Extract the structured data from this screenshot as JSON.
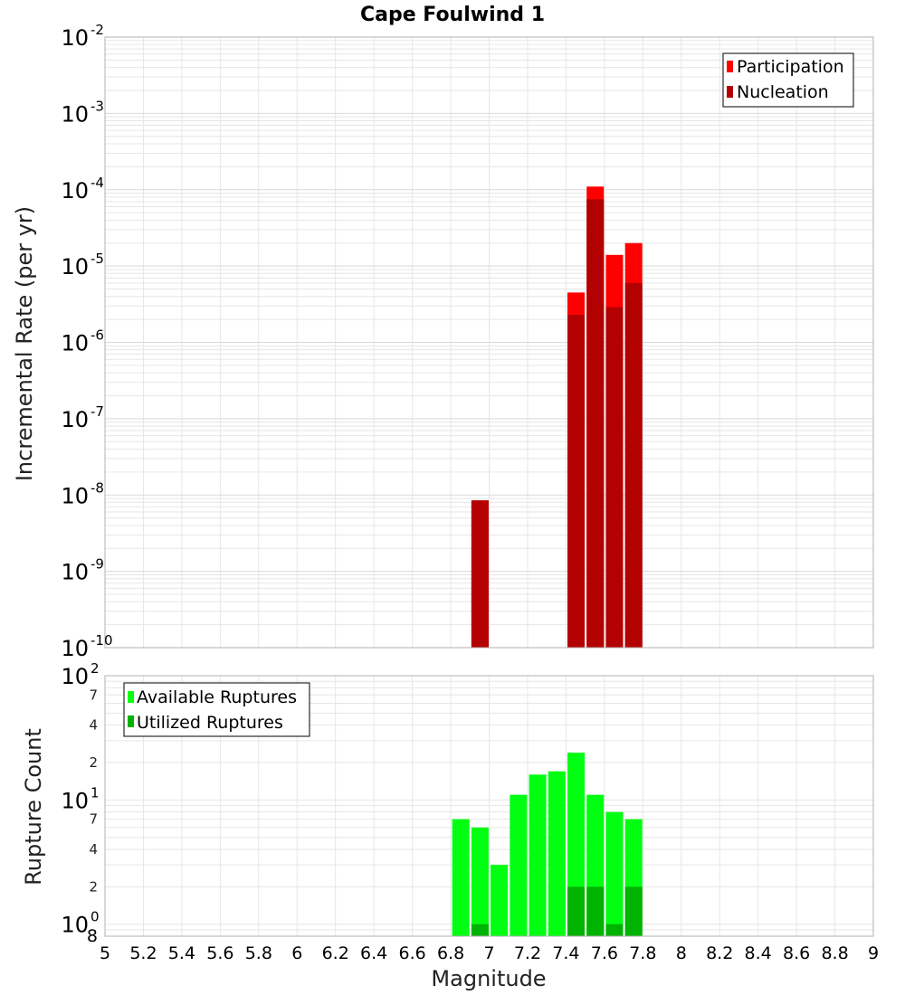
{
  "title": "Cape Foulwind 1",
  "colors": {
    "participation": "#ff0000",
    "nucleation": "#b30000",
    "available": "#00ff10",
    "utilized": "#00b300",
    "grid": "#e6e6e6",
    "frame": "#b0b0b0"
  },
  "chart_data": [
    {
      "type": "bar",
      "ylabel": "Incremental Rate (per yr)",
      "yscale": "log",
      "ylim": [
        1e-10,
        0.01
      ],
      "xlim": [
        5,
        9
      ],
      "grid": true,
      "legend_position": "top-right",
      "y_tick_labels": [
        {
          "base": "10",
          "exp": "-10",
          "value": 1e-10
        },
        {
          "base": "10",
          "exp": "-9",
          "value": 1e-09
        },
        {
          "base": "10",
          "exp": "-8",
          "value": 1e-08
        },
        {
          "base": "10",
          "exp": "-7",
          "value": 1e-07
        },
        {
          "base": "10",
          "exp": "-6",
          "value": 1e-06
        },
        {
          "base": "10",
          "exp": "-5",
          "value": 1e-05
        },
        {
          "base": "10",
          "exp": "-4",
          "value": 0.0001
        },
        {
          "base": "10",
          "exp": "-3",
          "value": 0.001
        },
        {
          "base": "10",
          "exp": "-2",
          "value": 0.01
        }
      ],
      "series": [
        {
          "name": "Participation",
          "x": [
            6.95,
            7.45,
            7.55,
            7.65,
            7.75
          ],
          "values": [
            8.5e-09,
            4.5e-06,
            0.00011,
            1.4e-05,
            2e-05
          ]
        },
        {
          "name": "Nucleation",
          "x": [
            6.95,
            7.45,
            7.55,
            7.65,
            7.75
          ],
          "values": [
            8.5e-09,
            2.3e-06,
            7.5e-05,
            2.9e-06,
            6e-06
          ]
        }
      ]
    },
    {
      "type": "bar",
      "xlabel": "Magnitude",
      "ylabel": "Rupture Count",
      "yscale": "log",
      "ylim": [
        0.8,
        100
      ],
      "xlim": [
        5,
        9
      ],
      "grid": true,
      "legend_position": "top-left",
      "x_tick_labels": [
        "5",
        "5.2",
        "5.4",
        "5.6",
        "5.8",
        "6",
        "6.2",
        "6.4",
        "6.6",
        "6.8",
        "7",
        "7.2",
        "7.4",
        "7.6",
        "7.8",
        "8",
        "8.2",
        "8.4",
        "8.6",
        "8.8",
        "9"
      ],
      "y_tick_labels": [
        {
          "base": "10",
          "exp": "0",
          "value": 1
        },
        {
          "base": "10",
          "exp": "1",
          "value": 10
        },
        {
          "base": "10",
          "exp": "2",
          "value": 100
        }
      ],
      "y_minor_labels": [
        {
          "label": "8",
          "value": 0.8
        },
        {
          "label": "2",
          "value": 2
        },
        {
          "label": "4",
          "value": 4
        },
        {
          "label": "7",
          "value": 7
        },
        {
          "label": "2",
          "value": 20
        },
        {
          "label": "4",
          "value": 40
        },
        {
          "label": "7",
          "value": 70
        }
      ],
      "series": [
        {
          "name": "Available Ruptures",
          "x": [
            6.85,
            6.95,
            7.05,
            7.15,
            7.25,
            7.35,
            7.45,
            7.55,
            7.65,
            7.75
          ],
          "values": [
            7,
            6,
            3,
            11,
            16,
            17,
            24,
            11,
            8,
            7
          ]
        },
        {
          "name": "Utilized Ruptures",
          "x": [
            6.85,
            6.95,
            7.05,
            7.15,
            7.25,
            7.35,
            7.45,
            7.55,
            7.65,
            7.75
          ],
          "values": [
            0,
            1,
            0,
            0,
            0,
            0,
            2,
            2,
            1,
            2
          ]
        }
      ]
    }
  ]
}
